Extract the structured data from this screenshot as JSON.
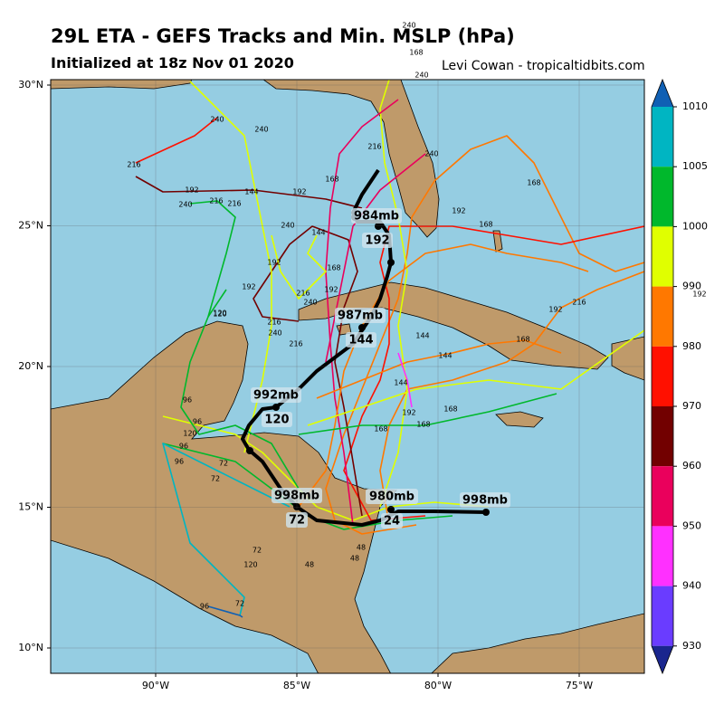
{
  "header": {
    "title": "29L ETA - GEFS Tracks and Min. MSLP (hPa)",
    "subtitle": "Initialized at 18z Nov 01 2020",
    "credit": "Levi Cowan - tropicaltidbits.com"
  },
  "map": {
    "lat_ticks": [
      {
        "value": 30,
        "label": "30°N"
      },
      {
        "value": 25,
        "label": "25°N"
      },
      {
        "value": 20,
        "label": "20°N"
      },
      {
        "value": 15,
        "label": "15°N"
      },
      {
        "value": 10,
        "label": "10°N"
      }
    ],
    "lon_ticks": [
      {
        "value": -90,
        "label": "90°W"
      },
      {
        "value": -85,
        "label": "85°W"
      },
      {
        "value": -80,
        "label": "80°W"
      },
      {
        "value": -75,
        "label": "75°W"
      }
    ],
    "ocean_color": "#95cde2"
  },
  "colorbar": {
    "ticks": [
      1010,
      1005,
      1000,
      990,
      980,
      970,
      960,
      950,
      940,
      930
    ],
    "colors": [
      "#00b5c2",
      "#00b82c",
      "#e0ff00",
      "#ff7800",
      "#ff1000",
      "#720000",
      "#ea005c",
      "#ff30ff",
      "#6a3cff"
    ],
    "over_color": "#1060b4",
    "under_color": "#1a268e"
  },
  "mean_track": {
    "labels": [
      "984mb",
      "192",
      "987mb",
      "144",
      "992mb",
      "120",
      "998mb",
      "72",
      "980mb",
      "24",
      "998mb"
    ]
  },
  "ensemble_labels": [
    "240",
    "168",
    "240",
    "240",
    "240",
    "216",
    "192",
    "240",
    "216",
    "216",
    "144",
    "192",
    "168",
    "240",
    "192",
    "144",
    "192",
    "216",
    "240",
    "120",
    "216",
    "240",
    "216",
    "168",
    "192",
    "168",
    "240",
    "216",
    "192",
    "192",
    "168",
    "144",
    "144",
    "120",
    "96",
    "96",
    "96",
    "120",
    "96",
    "72",
    "72",
    "48",
    "48",
    "48",
    "120",
    "72",
    "96",
    "72",
    "168",
    "168",
    "192",
    "168",
    "144",
    "216",
    "168",
    "192"
  ]
}
